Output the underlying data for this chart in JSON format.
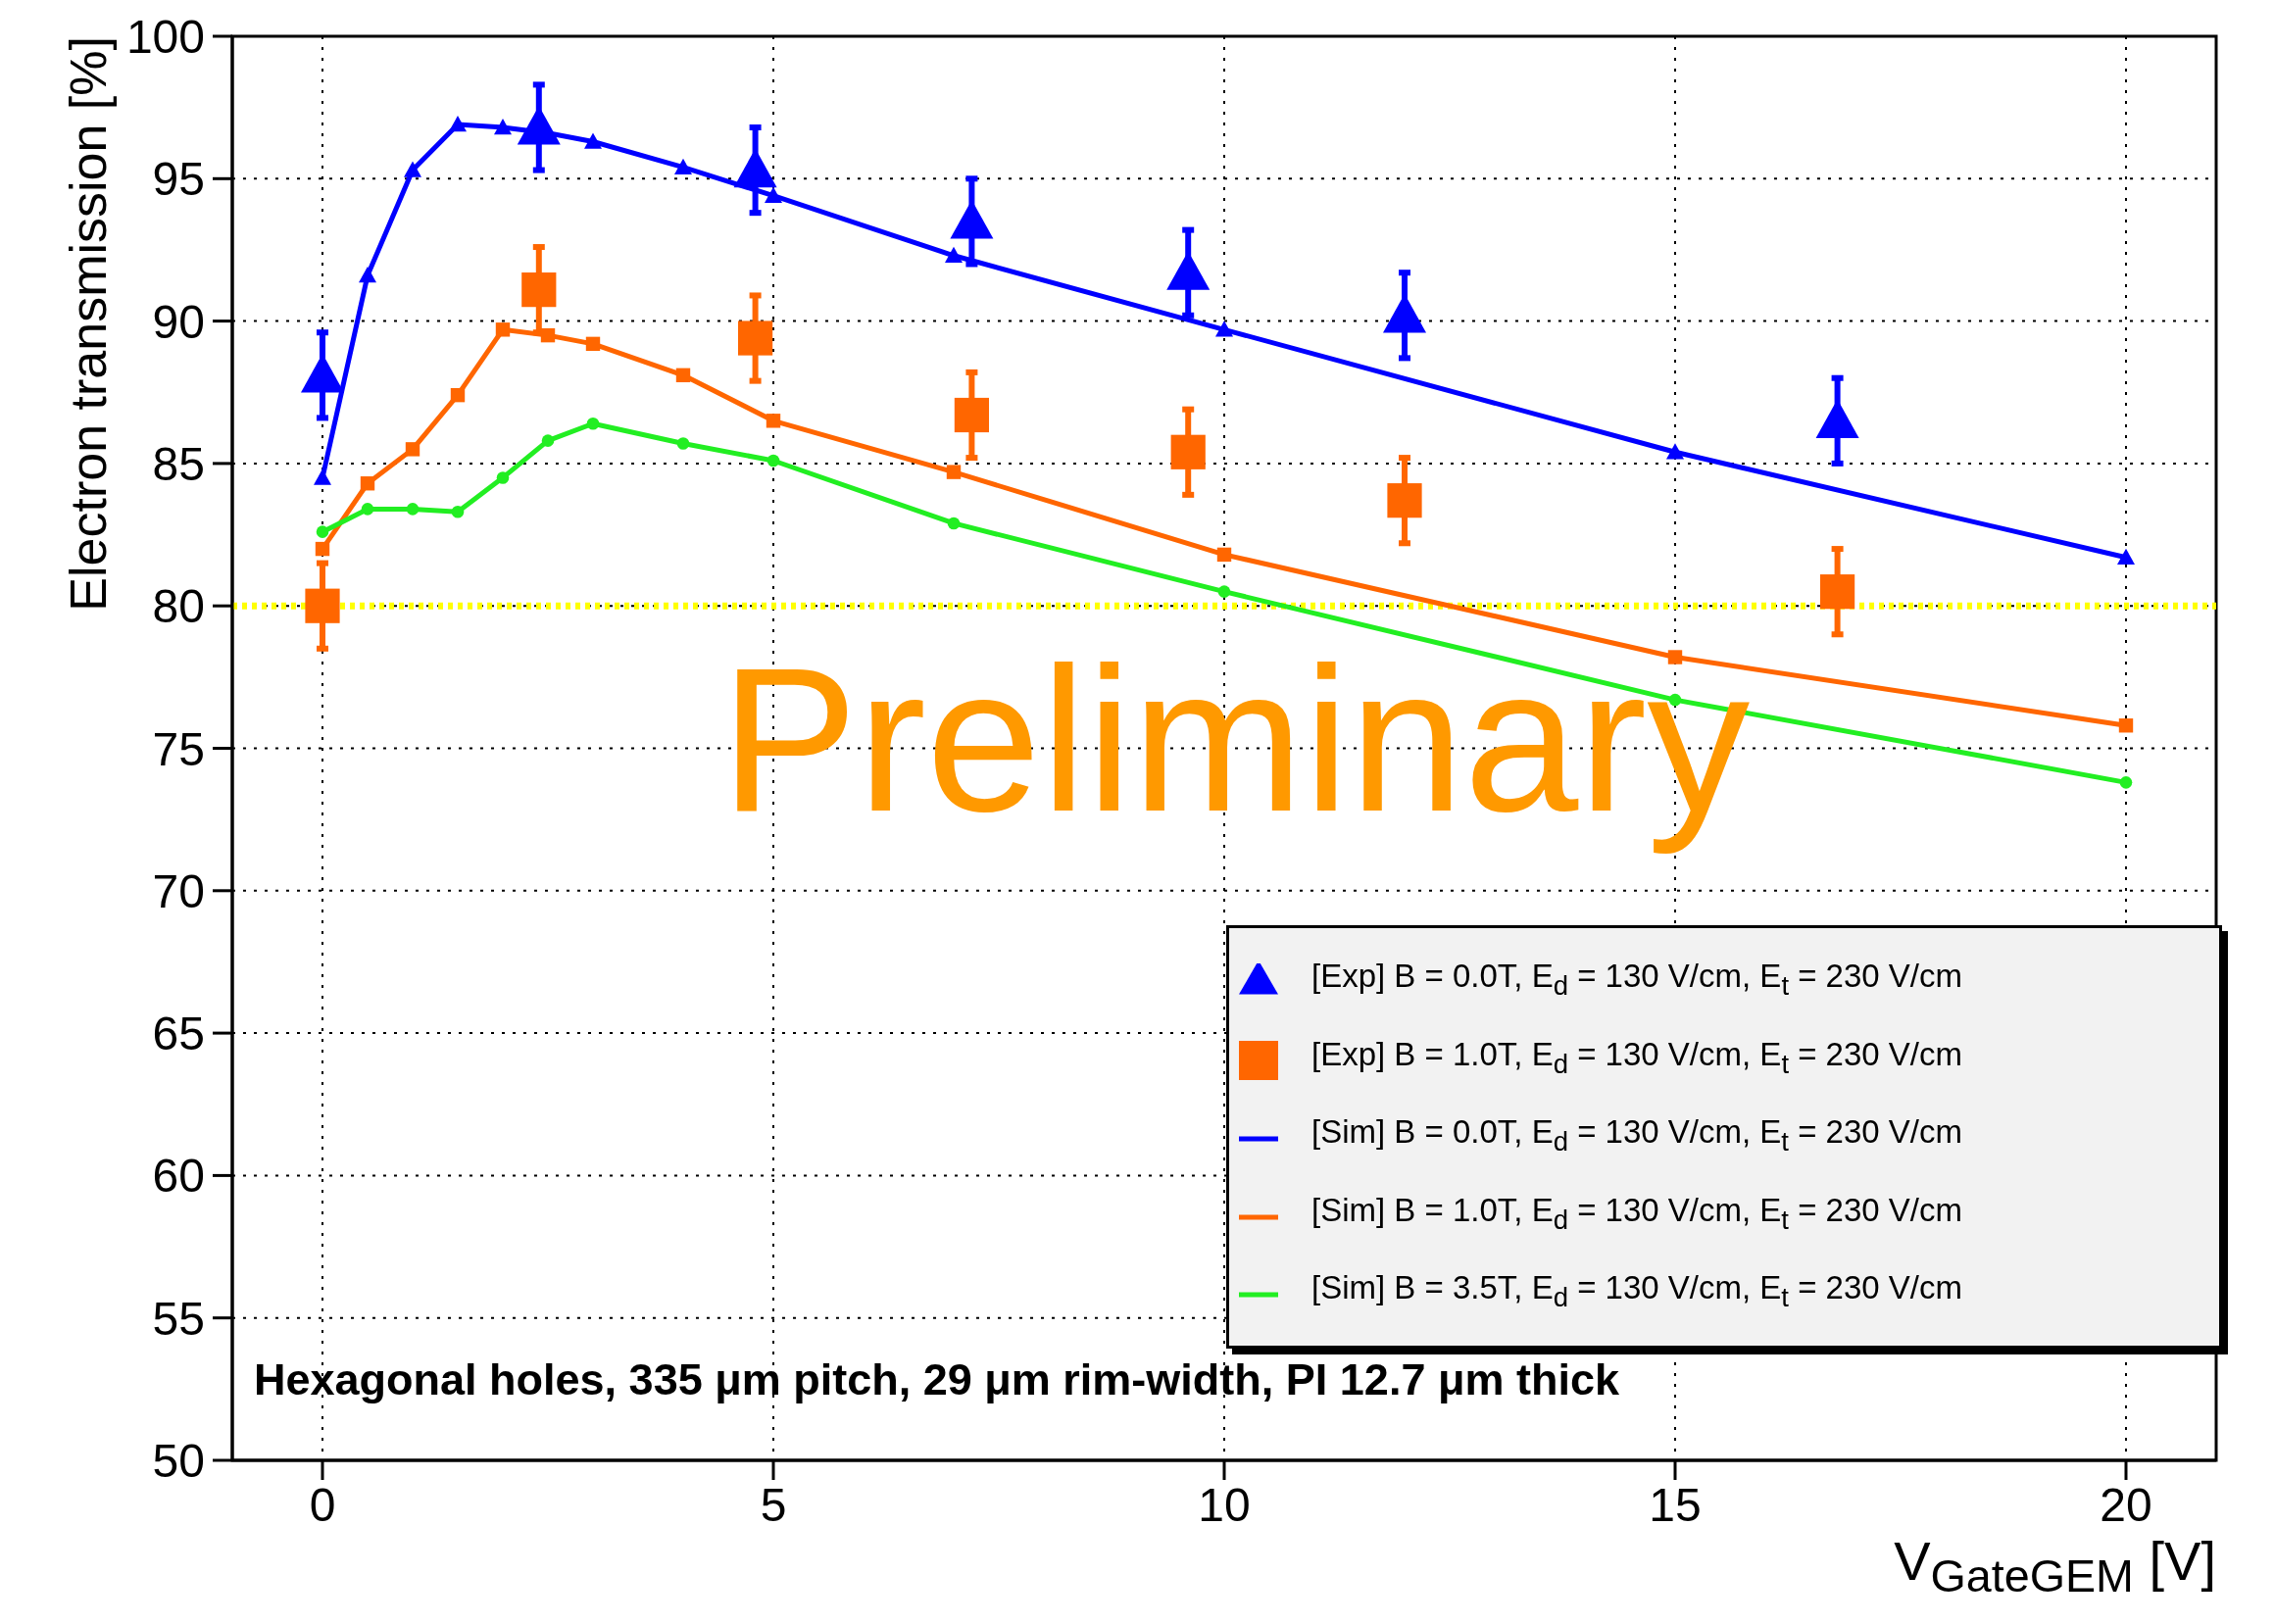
{
  "chart_data": {
    "type": "line",
    "xlabel": "V$_{GateGEM}$ [V]",
    "ylabel": "Electron transmission [%]",
    "xlim": [
      -1,
      21
    ],
    "xticks": [
      0,
      5,
      10,
      15,
      20
    ],
    "ylim": [
      50,
      100
    ],
    "yticks": [
      50,
      55,
      60,
      65,
      70,
      75,
      80,
      85,
      90,
      95,
      100
    ],
    "grid": true,
    "legend": "bottom right",
    "ref_lines": [
      {
        "axis": "y",
        "value": 80,
        "color": "#ffff00",
        "line_style": "dotted"
      }
    ],
    "annotations": [
      "Hexagonal holes, 335 μm pitch, 29 μm rim-width, PI 12.7 μm thick",
      "Preliminary"
    ],
    "series": [
      {
        "name": "[Exp] B = 0.0T, E$_{d}$ = 130 V/cm, E$_{t}$ = 230 V/cm",
        "type": "scatter",
        "marker": "triangle",
        "color": "#0000ff",
        "x": [
          0,
          2.4,
          4.8,
          7.2,
          9.6,
          12,
          16.8
        ],
        "values": [
          88.1,
          96.8,
          95.3,
          93.5,
          91.7,
          90.2,
          86.5
        ],
        "errors": [
          1.5,
          1.5,
          1.5,
          1.5,
          1.5,
          1.5,
          1.5
        ]
      },
      {
        "name": "[Exp] B = 1.0T, E$_{d}$ = 130 V/cm, E$_{t}$ = 230 V/cm",
        "type": "scatter",
        "marker": "square",
        "color": "#ff6600",
        "x": [
          0,
          2.4,
          4.8,
          7.2,
          9.6,
          12,
          16.8
        ],
        "values": [
          80.0,
          91.1,
          89.4,
          86.7,
          85.4,
          83.7,
          80.5
        ],
        "errors": [
          1.5,
          1.5,
          1.5,
          1.5,
          1.5,
          1.5,
          1.5
        ]
      },
      {
        "name": "[Sim] B = 0.0T, E$_{d}$ = 130 V/cm, E$_{t}$ = 230 V/cm",
        "marker": "triangle",
        "color": "#0000ff",
        "x": [
          0,
          0.5,
          1,
          1.5,
          2,
          2.5,
          3,
          4,
          5,
          7,
          10,
          15,
          20
        ],
        "values": [
          84.5,
          91.6,
          95.3,
          96.9,
          96.8,
          96.6,
          96.3,
          95.4,
          94.4,
          92.3,
          89.7,
          85.4,
          81.7
        ]
      },
      {
        "name": "[Sim] B = 1.0T, E$_{d}$ = 130 V/cm, E$_{t}$ = 230 V/cm",
        "marker": "square",
        "color": "#ff6600",
        "x": [
          0,
          0.5,
          1,
          1.5,
          2,
          2.5,
          3,
          4,
          5,
          7,
          10,
          15,
          20
        ],
        "values": [
          82.0,
          84.3,
          85.5,
          87.4,
          89.7,
          89.5,
          89.2,
          88.1,
          86.5,
          84.7,
          81.8,
          78.2,
          75.8
        ]
      },
      {
        "name": "[Sim] B = 3.5T, E$_{d}$ = 130 V/cm, E$_{t}$ = 230 V/cm",
        "marker": "circle",
        "color": "#22ee22",
        "x": [
          0,
          0.5,
          1,
          1.5,
          2,
          2.5,
          3,
          4,
          5,
          7,
          10,
          15,
          20
        ],
        "values": [
          82.6,
          83.4,
          83.4,
          83.3,
          84.5,
          85.8,
          86.4,
          85.7,
          85.1,
          82.9,
          80.5,
          76.7,
          73.8
        ]
      }
    ]
  }
}
